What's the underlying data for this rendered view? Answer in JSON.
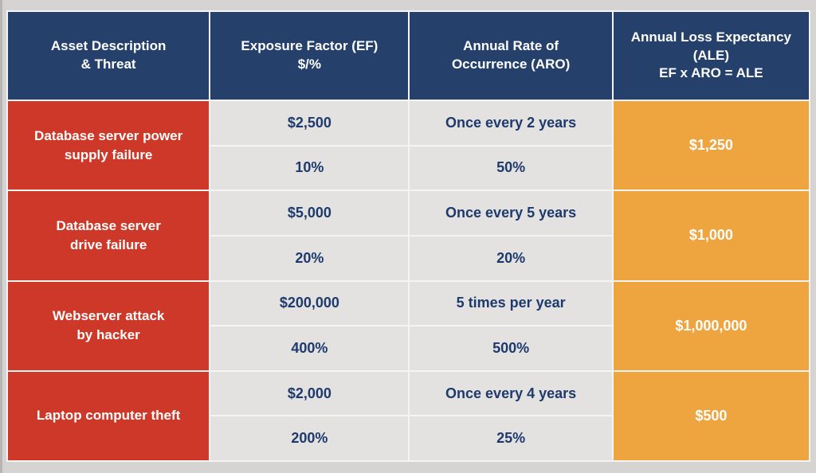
{
  "colors": {
    "page_background": "#d5d4d3",
    "grid_line": "#f5f4f2",
    "header_navy": "#24406b",
    "asset_red": "#cd3828",
    "ale_orange": "#eea540",
    "cell_gray": "#e3e2e1",
    "value_text_navy": "#1e3a6c",
    "light_text": "#ffffff"
  },
  "table": {
    "headers": [
      {
        "label": "Asset Description\n& Threat"
      },
      {
        "label": "Exposure Factor (EF)\n$/%"
      },
      {
        "label": "Annual Rate of\nOccurrence (ARO)"
      },
      {
        "label": "Annual Loss Expectancy\n(ALE)\nEF x ARO = ALE"
      }
    ],
    "rows": [
      {
        "asset": "Database server power\nsupply failure",
        "ef_dollar": "$2,500",
        "ef_percent": "10%",
        "aro_frequency": "Once every 2 years",
        "aro_percent": "50%",
        "ale": "$1,250"
      },
      {
        "asset": "Database server\ndrive failure",
        "ef_dollar": "$5,000",
        "ef_percent": "20%",
        "aro_frequency": "Once every 5 years",
        "aro_percent": "20%",
        "ale": "$1,000"
      },
      {
        "asset": "Webserver attack\nby hacker",
        "ef_dollar": "$200,000",
        "ef_percent": "400%",
        "aro_frequency": "5 times per year",
        "aro_percent": "500%",
        "ale": "$1,000,000"
      },
      {
        "asset": "Laptop computer theft",
        "ef_dollar": "$2,000",
        "ef_percent": "200%",
        "aro_frequency": "Once every 4 years",
        "aro_percent": "25%",
        "ale": "$500"
      }
    ]
  },
  "chart_data": {
    "type": "table",
    "columns": [
      "Asset Description & Threat",
      "Exposure Factor (EF) $/%",
      "Annual Rate of Occurrence (ARO)",
      "Annual Loss Expectancy (ALE) EF x ARO = ALE"
    ],
    "rows": [
      {
        "asset_description_threat": "Database server power supply failure",
        "exposure_factor_dollars": "$2,500",
        "exposure_factor_percent": "10%",
        "aro_frequency": "Once every 2 years",
        "aro_percent": "50%",
        "annual_loss_expectancy": "$1,250"
      },
      {
        "asset_description_threat": "Database server drive failure",
        "exposure_factor_dollars": "$5,000",
        "exposure_factor_percent": "20%",
        "aro_frequency": "Once every 5 years",
        "aro_percent": "20%",
        "annual_loss_expectancy": "$1,000"
      },
      {
        "asset_description_threat": "Webserver attack by hacker",
        "exposure_factor_dollars": "$200,000",
        "exposure_factor_percent": "400%",
        "aro_frequency": "5 times per year",
        "aro_percent": "500%",
        "annual_loss_expectancy": "$1,000,000"
      },
      {
        "asset_description_threat": "Laptop computer theft",
        "exposure_factor_dollars": "$2,000",
        "exposure_factor_percent": "200%",
        "aro_frequency": "Once every 4 years",
        "aro_percent": "25%",
        "annual_loss_expectancy": "$500"
      }
    ],
    "layout": "Column 1 red single cell per row; columns 2-3 gray cells split into two stacked sub-values ($ amount / % on top, frequency / % below); column 4 orange single merged cell per row; navy header row; white grid lines"
  }
}
